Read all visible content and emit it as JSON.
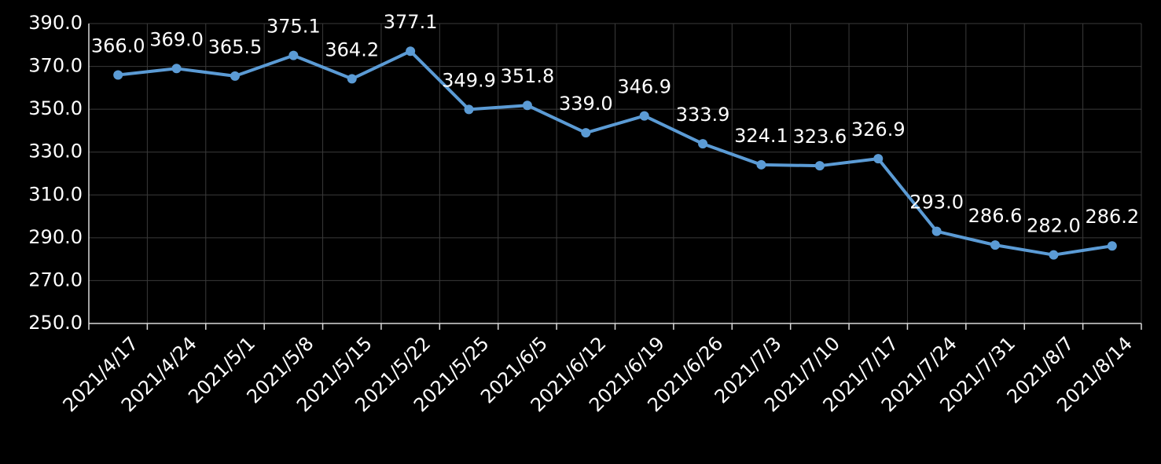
{
  "chart_data": {
    "type": "line",
    "categories": [
      "2021/4/17",
      "2021/4/24",
      "2021/5/1",
      "2021/5/8",
      "2021/5/15",
      "2021/5/22",
      "2021/5/25",
      "2021/6/5",
      "2021/6/12",
      "2021/6/19",
      "2021/6/26",
      "2021/7/3",
      "2021/7/10",
      "2021/7/17",
      "2021/7/24",
      "2021/7/31",
      "2021/8/7",
      "2021/8/14"
    ],
    "values": [
      366.0,
      369.0,
      365.5,
      375.1,
      364.2,
      377.1,
      349.9,
      351.8,
      339.0,
      346.9,
      333.9,
      324.1,
      323.6,
      326.9,
      293.0,
      286.6,
      282.0,
      286.2
    ],
    "value_labels": [
      "366.0",
      "369.0",
      "365.5",
      "375.1",
      "364.2",
      "377.1",
      "349.9",
      "351.8",
      "339.0",
      "346.9",
      "333.9",
      "324.1",
      "323.6",
      "326.9",
      "293.0",
      "286.6",
      "282.0",
      "286.2"
    ],
    "color": "#5b9bd5",
    "ylim": [
      250,
      390
    ],
    "yticks": [
      {
        "value": 250,
        "label": "250.0"
      },
      {
        "value": 270,
        "label": "270.0"
      },
      {
        "value": 290,
        "label": "290.0"
      },
      {
        "value": 310,
        "label": "310.0"
      },
      {
        "value": 330,
        "label": "330.0"
      },
      {
        "value": 350,
        "label": "350.0"
      },
      {
        "value": 370,
        "label": "370.0"
      },
      {
        "value": 390,
        "label": "390.0"
      }
    ],
    "grid": true
  }
}
